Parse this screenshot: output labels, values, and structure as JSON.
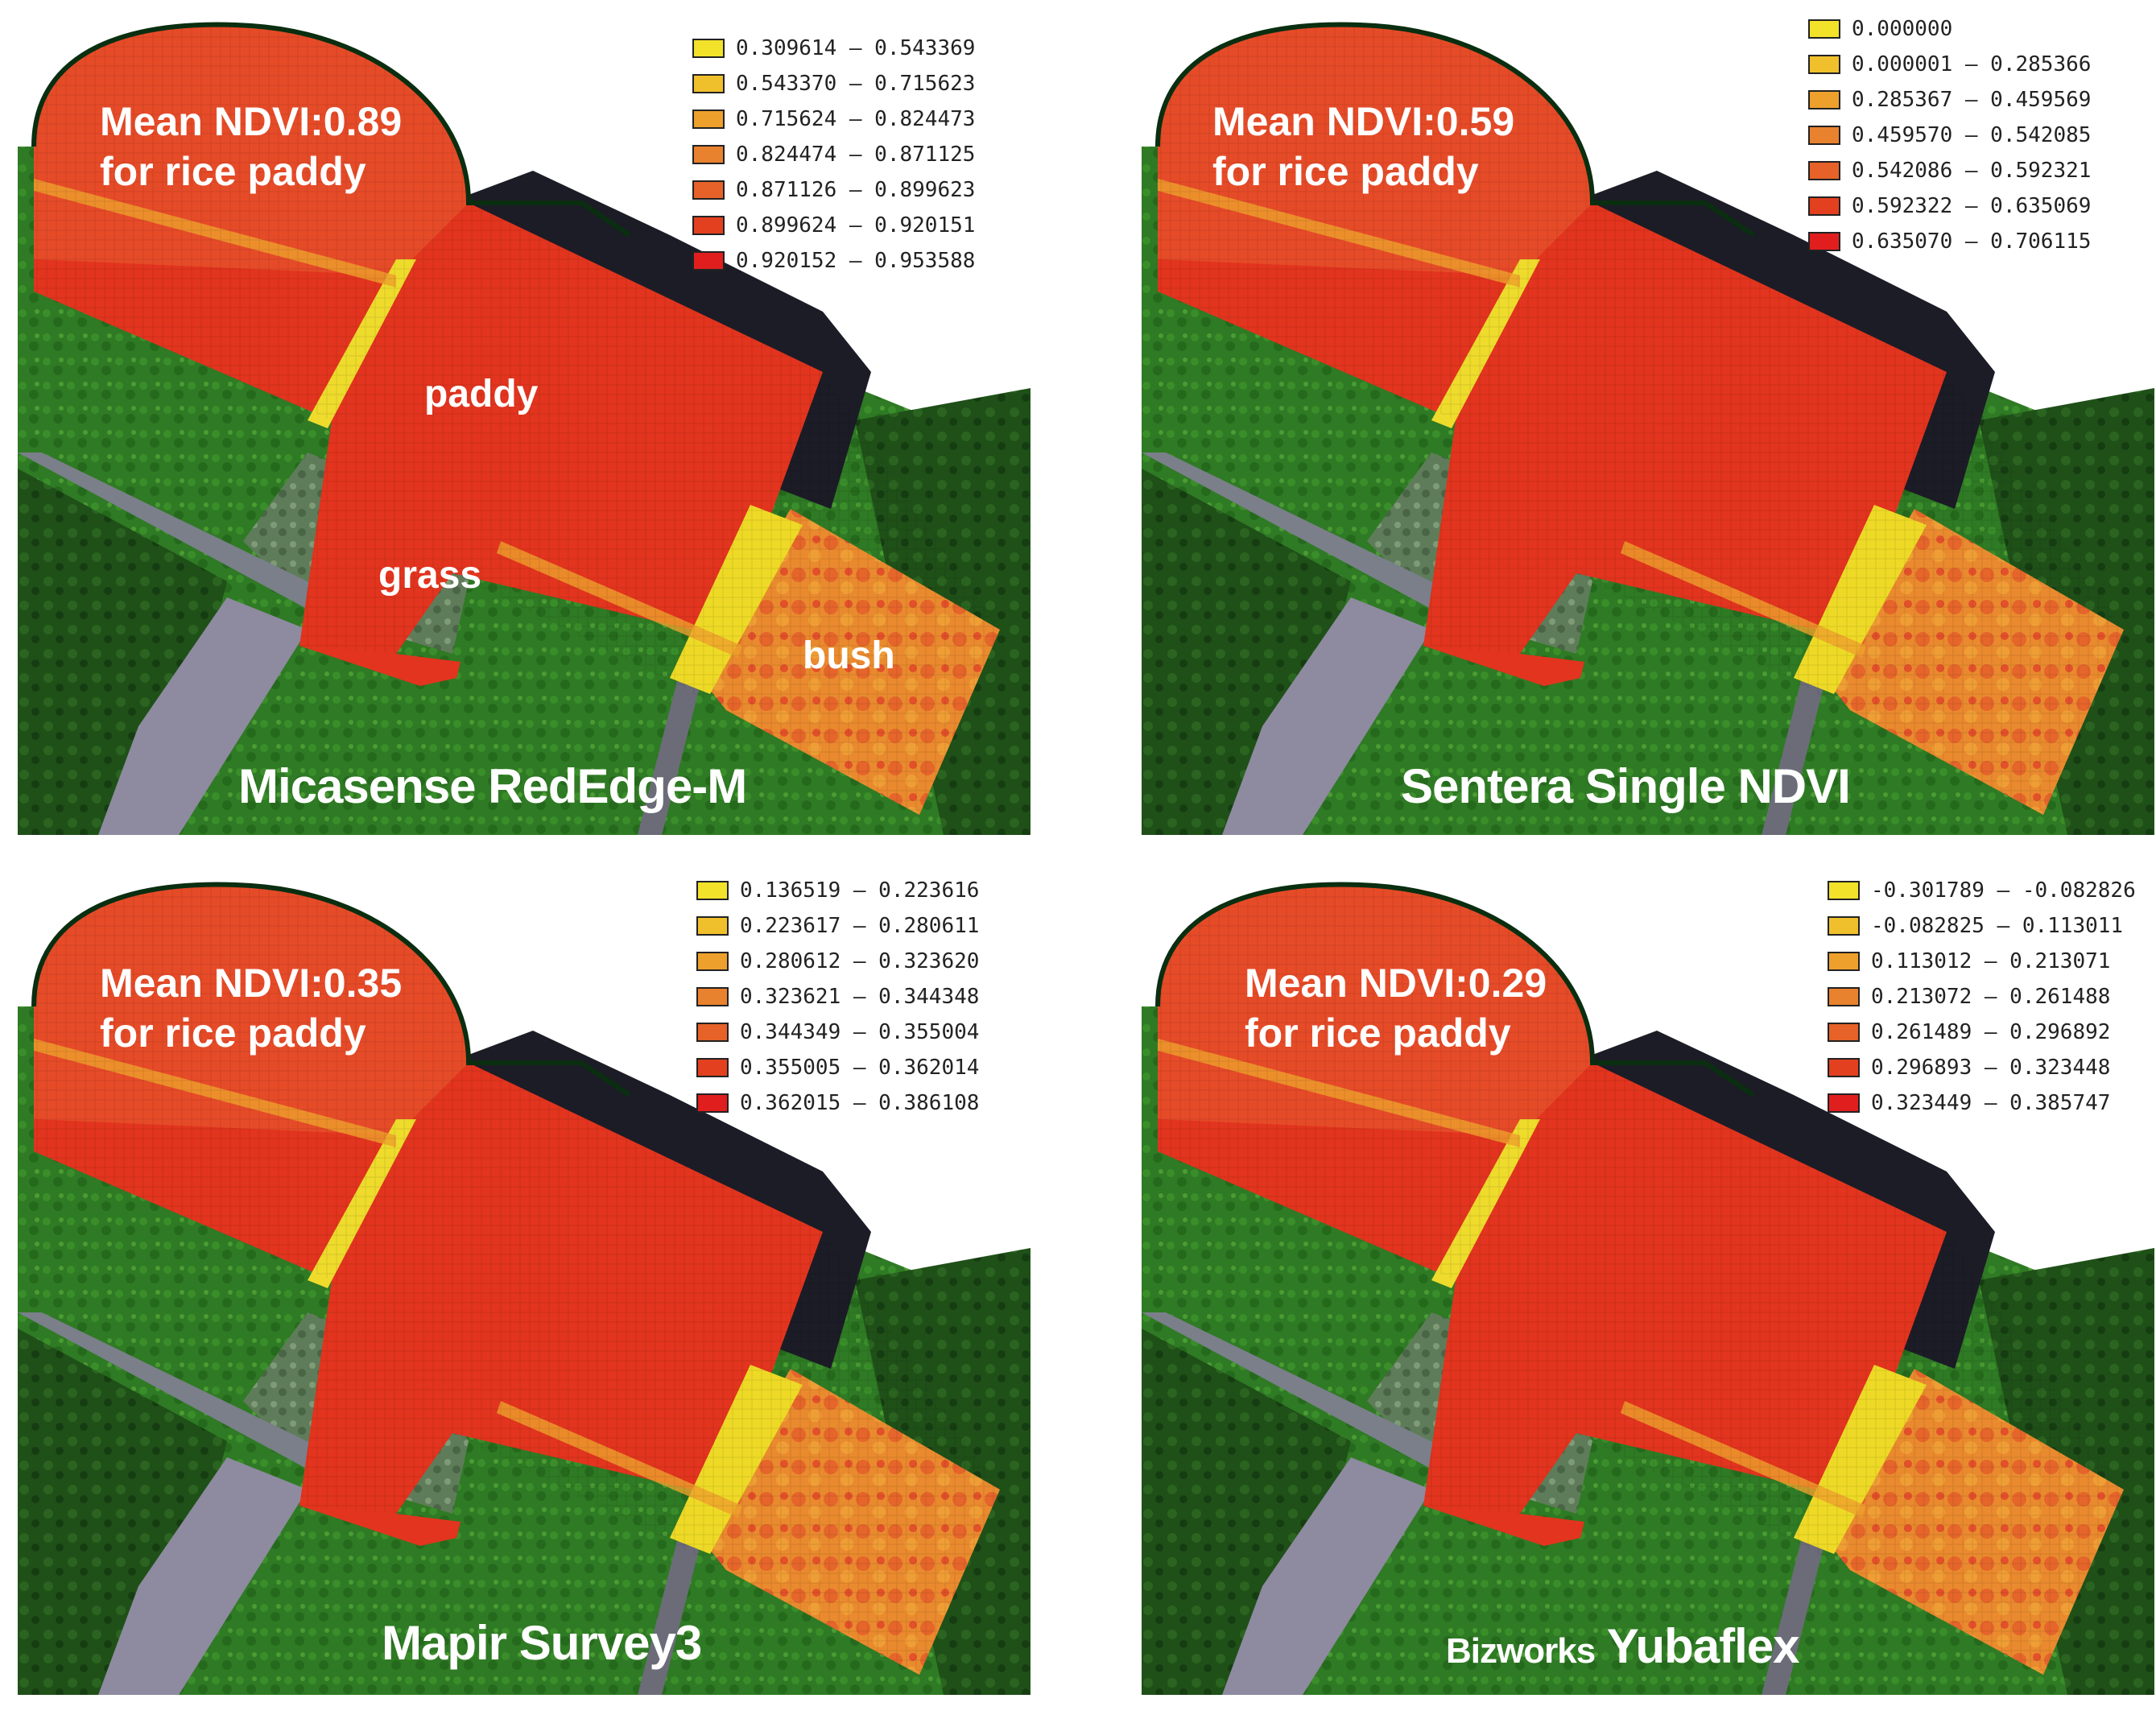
{
  "palette": [
    "#f2e22a",
    "#f0c02c",
    "#eda02c",
    "#e9822e",
    "#e66228",
    "#e3401f",
    "#e01e1e"
  ],
  "panels": [
    {
      "id": "micasense",
      "mean_line1": "Mean NDVI:0.89",
      "mean_line2": "for rice paddy",
      "sensor": "Micasense RedEdge-M",
      "labels": {
        "paddy": "paddy",
        "grass": "grass",
        "bush": "bush"
      },
      "legend": [
        "0.309614 – 0.543369",
        "0.543370 – 0.715623",
        "0.715624 – 0.824473",
        "0.824474 – 0.871125",
        "0.871126 – 0.899623",
        "0.899624 – 0.920151",
        "0.920152 – 0.953588"
      ]
    },
    {
      "id": "sentera",
      "mean_line1": "Mean NDVI:0.59",
      "mean_line2": "for rice paddy",
      "sensor": "Sentera Single NDVI",
      "legend": [
        "0.000000",
        "0.000001 – 0.285366",
        "0.285367 – 0.459569",
        "0.459570 – 0.542085",
        "0.542086 – 0.592321",
        "0.592322 – 0.635069",
        "0.635070 – 0.706115"
      ]
    },
    {
      "id": "mapir",
      "mean_line1": "Mean NDVI:0.35",
      "mean_line2": "for rice paddy",
      "sensor": "Mapir Survey3",
      "legend": [
        "0.136519 – 0.223616",
        "0.223617 – 0.280611",
        "0.280612 – 0.323620",
        "0.323621 – 0.344348",
        "0.344349 – 0.355004",
        "0.355005 – 0.362014",
        "0.362015 – 0.386108"
      ]
    },
    {
      "id": "bizworks",
      "mean_line1": "Mean NDVI:0.29",
      "mean_line2": "for rice paddy",
      "sensor_brand": "Bizworks",
      "sensor": "Yubaflex",
      "legend": [
        "-0.301789 – -0.082826",
        "-0.082825 – 0.113011",
        "0.113012 – 0.213071",
        "0.213072 – 0.261488",
        "0.261489 – 0.296892",
        "0.296893 – 0.323448",
        "0.323449 – 0.385747"
      ]
    }
  ]
}
